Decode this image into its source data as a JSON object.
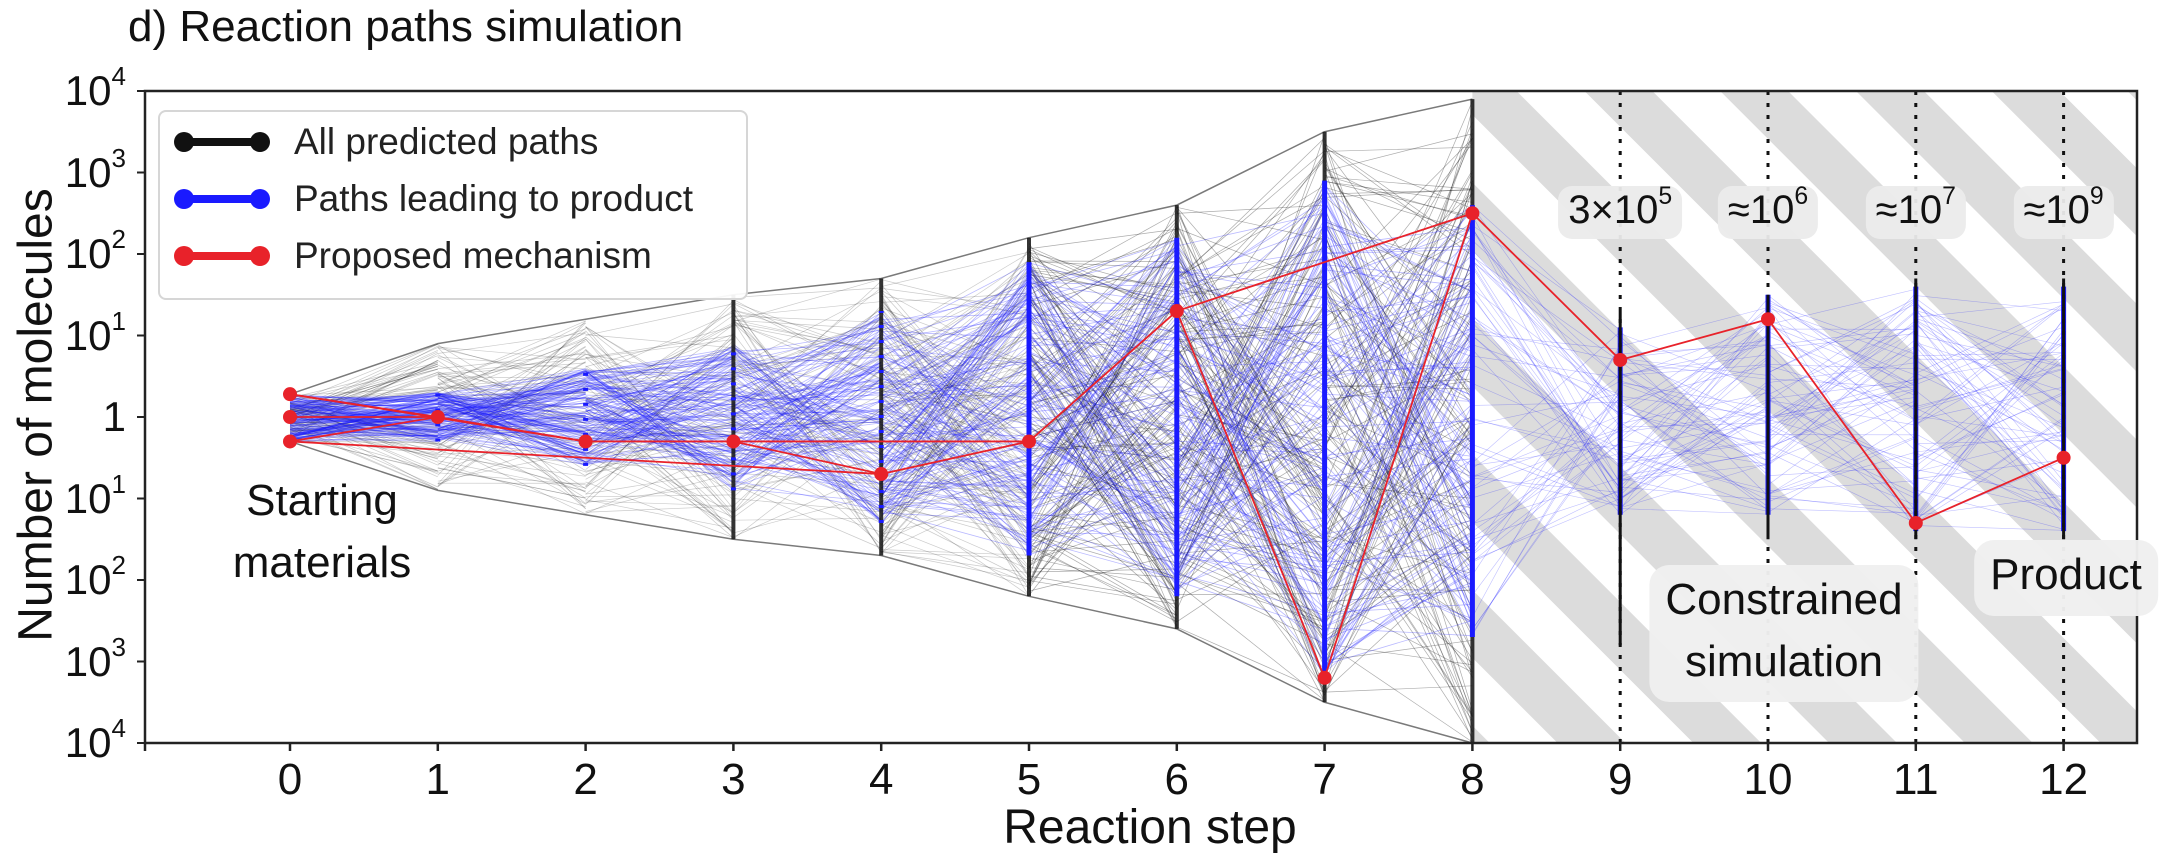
{
  "chart_data": {
    "type": "line",
    "title": "d) Reaction paths simulation",
    "xlabel": "Reaction step",
    "ylabel": "Number of molecules",
    "x_ticks": [
      "0",
      "1",
      "2",
      "3",
      "4",
      "5",
      "6",
      "7",
      "8",
      "9",
      "10",
      "11",
      "12"
    ],
    "xlim": [
      -1,
      12.4
    ],
    "y_tick_base": "10",
    "y_ticks": [
      {
        "exp": "4"
      },
      {
        "exp": "3"
      },
      {
        "exp": "2"
      },
      {
        "exp": "1"
      },
      {
        "label": "1"
      },
      {
        "exp": "1"
      },
      {
        "exp": "2"
      },
      {
        "exp": "3"
      },
      {
        "exp": "4"
      }
    ],
    "ylim": [
      -4,
      4
    ],
    "y_scale": "symmetric log (molecule count diverging from 1)",
    "legend": {
      "location": "top-left",
      "entries": [
        {
          "label": "All predicted paths",
          "color": "#111111"
        },
        {
          "label": "Paths leading to product",
          "color": "#1a1aff"
        },
        {
          "label": "Proposed mechanism",
          "color": "#e8222a"
        }
      ]
    },
    "annotations": {
      "starting_materials": [
        "Starting",
        "materials"
      ],
      "constrained_simulation": [
        "Constrained",
        "simulation"
      ],
      "product": "Product",
      "path_counts": [
        {
          "step": 9,
          "prefix": "3×10",
          "exp": "5"
        },
        {
          "step": 10,
          "prefix": "≈10",
          "exp": "6"
        },
        {
          "step": 11,
          "prefix": "≈10",
          "exp": "7"
        },
        {
          "step": 12,
          "prefix": "≈10",
          "exp": "9"
        }
      ],
      "constrained_from_step": 8
    },
    "series": [
      {
        "name": "Proposed mechanism",
        "color": "#e8222a",
        "points": [
          {
            "x": 0,
            "y": 0.28
          },
          {
            "x": 0,
            "y": 0.0
          },
          {
            "x": 0,
            "y": -0.3
          },
          {
            "x": 1,
            "y": 0.0
          },
          {
            "x": 2,
            "y": -0.3
          },
          {
            "x": 3,
            "y": -0.3
          },
          {
            "x": 4,
            "y": -0.7
          },
          {
            "x": 5,
            "y": -0.3
          },
          {
            "x": 6,
            "y": 1.3
          },
          {
            "x": 7,
            "y": -3.2
          },
          {
            "x": 8,
            "y": 2.5
          },
          {
            "x": 9,
            "y": 0.7
          },
          {
            "x": 10,
            "y": 1.2
          },
          {
            "x": 11,
            "y": -1.3
          },
          {
            "x": 12,
            "y": -0.5
          }
        ],
        "links": [
          [
            0,
            3
          ],
          [
            1,
            3
          ],
          [
            2,
            3
          ],
          [
            0,
            4
          ],
          [
            2,
            6
          ],
          [
            3,
            4
          ],
          [
            4,
            5
          ],
          [
            5,
            6
          ],
          [
            5,
            7
          ],
          [
            6,
            7
          ],
          [
            7,
            8
          ],
          [
            8,
            9
          ],
          [
            8,
            10
          ],
          [
            9,
            10
          ],
          [
            10,
            11
          ],
          [
            11,
            12
          ],
          [
            12,
            13
          ],
          [
            13,
            14
          ]
        ]
      },
      {
        "name": "All predicted paths",
        "color": "#111111",
        "envelope_per_step": [
          {
            "x": 0,
            "min": -0.3,
            "max": 0.28
          },
          {
            "x": 1,
            "min": -0.9,
            "max": 0.9
          },
          {
            "x": 2,
            "min": -1.2,
            "max": 1.2
          },
          {
            "x": 3,
            "min": -1.5,
            "max": 1.5
          },
          {
            "x": 4,
            "min": -1.7,
            "max": 1.7
          },
          {
            "x": 5,
            "min": -2.2,
            "max": 2.2
          },
          {
            "x": 6,
            "min": -2.6,
            "max": 2.6
          },
          {
            "x": 7,
            "min": -3.5,
            "max": 3.5
          },
          {
            "x": 8,
            "min": -4.0,
            "max": 3.9
          }
        ]
      },
      {
        "name": "Paths leading to product",
        "color": "#1a1aff",
        "envelope_per_step": [
          {
            "x": 0,
            "min": -0.3,
            "max": 0.28
          },
          {
            "x": 1,
            "min": -0.3,
            "max": 0.3
          },
          {
            "x": 2,
            "min": -0.6,
            "max": 0.6
          },
          {
            "x": 3,
            "min": -0.9,
            "max": 0.9
          },
          {
            "x": 4,
            "min": -1.3,
            "max": 1.3
          },
          {
            "x": 5,
            "min": -1.7,
            "max": 1.9
          },
          {
            "x": 6,
            "min": -2.2,
            "max": 2.2
          },
          {
            "x": 7,
            "min": -3.2,
            "max": 2.9
          },
          {
            "x": 8,
            "min": -2.7,
            "max": 2.6
          },
          {
            "x": 9,
            "min": -1.2,
            "max": 1.1
          },
          {
            "x": 10,
            "min": -1.2,
            "max": 1.5
          },
          {
            "x": 11,
            "min": -1.4,
            "max": 1.6
          },
          {
            "x": 12,
            "min": -1.4,
            "max": 1.6
          }
        ]
      }
    ]
  }
}
